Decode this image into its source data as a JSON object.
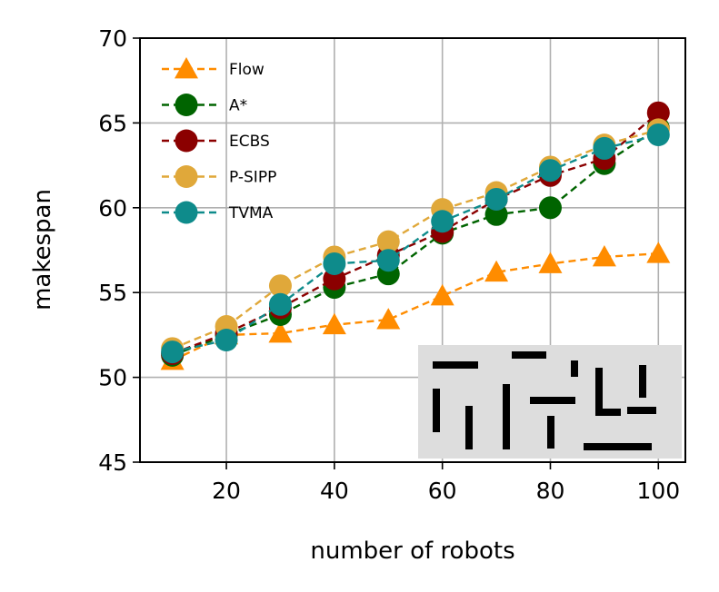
{
  "chart_data": {
    "type": "line",
    "xlabel": "number of robots",
    "ylabel": "makespan",
    "xlim": [
      4,
      105
    ],
    "ylim": [
      45,
      70
    ],
    "xticks": [
      20,
      40,
      60,
      80,
      100
    ],
    "yticks": [
      45,
      50,
      55,
      60,
      65,
      70
    ],
    "grid": true,
    "legend_position": "top-left",
    "x": [
      10,
      20,
      30,
      40,
      50,
      60,
      70,
      80,
      90,
      100
    ],
    "series": [
      {
        "name": "Flow",
        "marker": "triangle",
        "color": "#ff8c00",
        "values": [
          51.0,
          52.5,
          52.6,
          53.1,
          53.4,
          54.8,
          56.2,
          56.7,
          57.1,
          57.3
        ]
      },
      {
        "name": "A*",
        "marker": "circle",
        "color": "#006400",
        "values": [
          51.3,
          52.5,
          53.7,
          55.3,
          56.1,
          58.5,
          59.6,
          60.0,
          62.6,
          64.7
        ]
      },
      {
        "name": "ECBS",
        "marker": "circle",
        "color": "#8b0000",
        "values": [
          51.4,
          52.6,
          54.1,
          55.8,
          57.2,
          58.6,
          60.5,
          61.9,
          62.9,
          65.6
        ]
      },
      {
        "name": "P-SIPP",
        "marker": "circle",
        "color": "#e0a83a",
        "values": [
          51.7,
          53.0,
          55.4,
          57.1,
          58.0,
          59.9,
          60.9,
          62.4,
          63.7,
          64.6
        ]
      },
      {
        "name": "TVMA",
        "marker": "circle",
        "color": "#0e8b8b",
        "values": [
          51.5,
          52.2,
          54.3,
          56.7,
          56.9,
          59.2,
          60.5,
          62.2,
          63.5,
          64.3
        ]
      }
    ]
  },
  "inset": {
    "background": "#dddddd",
    "bar_color": "#000000"
  }
}
